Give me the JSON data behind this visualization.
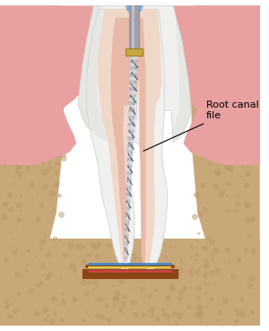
{
  "bg_color": "#ffffff",
  "bone_color": "#c8a878",
  "bone_texture_color": "#b89868",
  "gum_color": "#e8a0a0",
  "gum_dark_color": "#d07878",
  "dentin_color": "#f0d8c8",
  "pulp_color": "#e8b8a8",
  "enamel_color": "#f0f0ee",
  "enamel_shadow": "#d8d8d4",
  "root_canal_color": "#d89888",
  "file_shaft_color": "#b0b0b8",
  "file_shaft_light": "#d8d8e0",
  "file_handle_color": "#c8a840",
  "file_tip_color": "#909098",
  "motor_color": "#a0a0a8",
  "motor_light": "#d0d0d8",
  "blue_tube_color": "#80b0d8",
  "blue_tube_light": "#a0d0f8",
  "nerve_red": "#cc4444",
  "nerve_yellow": "#e8c840",
  "nerve_blue": "#4488cc",
  "nerve_brown": "#8b4513",
  "annotation_text": "Root canal\nfile",
  "annotation_fontsize": 8,
  "figsize": [
    3.0,
    3.69
  ],
  "dpi": 100
}
